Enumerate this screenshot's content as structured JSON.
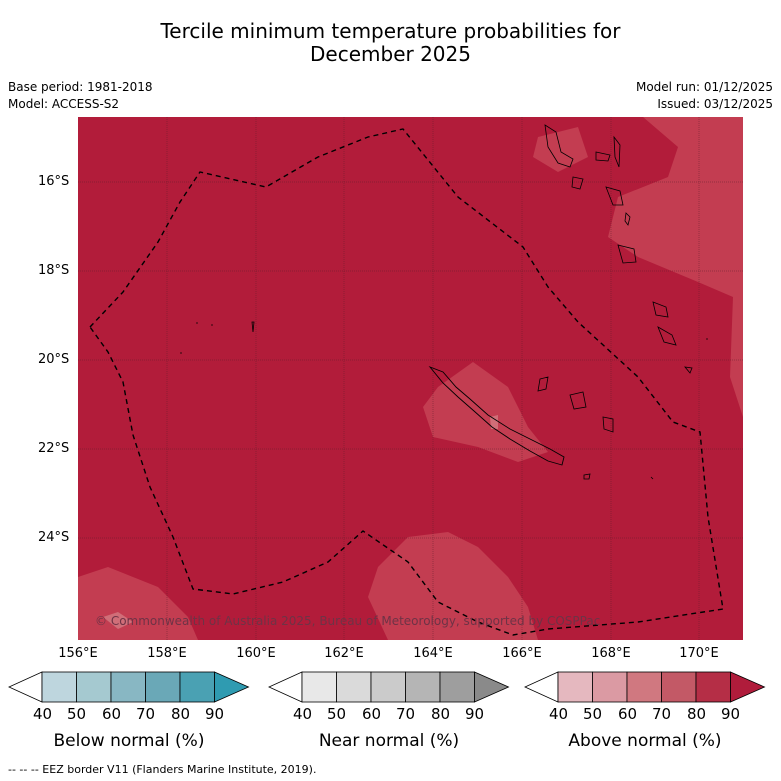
{
  "header": {
    "title_line1": "Tercile minimum temperature probabilities for",
    "title_line2": "December 2025",
    "base_period": "Base period: 1981-2018",
    "model": "Model: ACCESS-S2",
    "model_run": "Model run: 01/12/2025",
    "issued": "Issued: 03/12/2025"
  },
  "map": {
    "lat_labels": [
      "16°S",
      "18°S",
      "20°S",
      "22°S",
      "24°S"
    ],
    "lon_labels": [
      "156°E",
      "158°E",
      "160°E",
      "162°E",
      "164°E",
      "166°E",
      "168°E",
      "170°E"
    ],
    "copyright": "© Commonwealth of Australia 2025, Bureau of Meteorology, supported by COSPPac",
    "colors": {
      "above_80_90": "#b21c3a",
      "above_70_80": "#c33d51",
      "above_60_70": "#d06e78"
    }
  },
  "legend": {
    "below": {
      "label": "Below normal (%)",
      "ticks": [
        "40",
        "50",
        "60",
        "70",
        "80",
        "90"
      ],
      "colors": [
        "#ffffff",
        "#bed6de",
        "#a5c9d0",
        "#88b7c3",
        "#6aa8b7",
        "#4aa1b3",
        "#2f9bb1"
      ]
    },
    "near": {
      "label": "Near normal (%)",
      "ticks": [
        "40",
        "50",
        "60",
        "70",
        "80",
        "90"
      ],
      "colors": [
        "#ffffff",
        "#e8e8e8",
        "#dadada",
        "#cbcbcb",
        "#b5b5b5",
        "#9e9e9e",
        "#8a8a8a"
      ]
    },
    "above": {
      "label": "Above normal (%)",
      "ticks": [
        "40",
        "50",
        "60",
        "70",
        "80",
        "90"
      ],
      "colors": [
        "#ffffff",
        "#e5b8bf",
        "#db9aa3",
        "#d07880",
        "#c35966",
        "#b52e46",
        "#b01c3b"
      ]
    }
  },
  "footnote": "--  --  -- EEZ border V11 (Flanders Marine Institute, 2019)."
}
